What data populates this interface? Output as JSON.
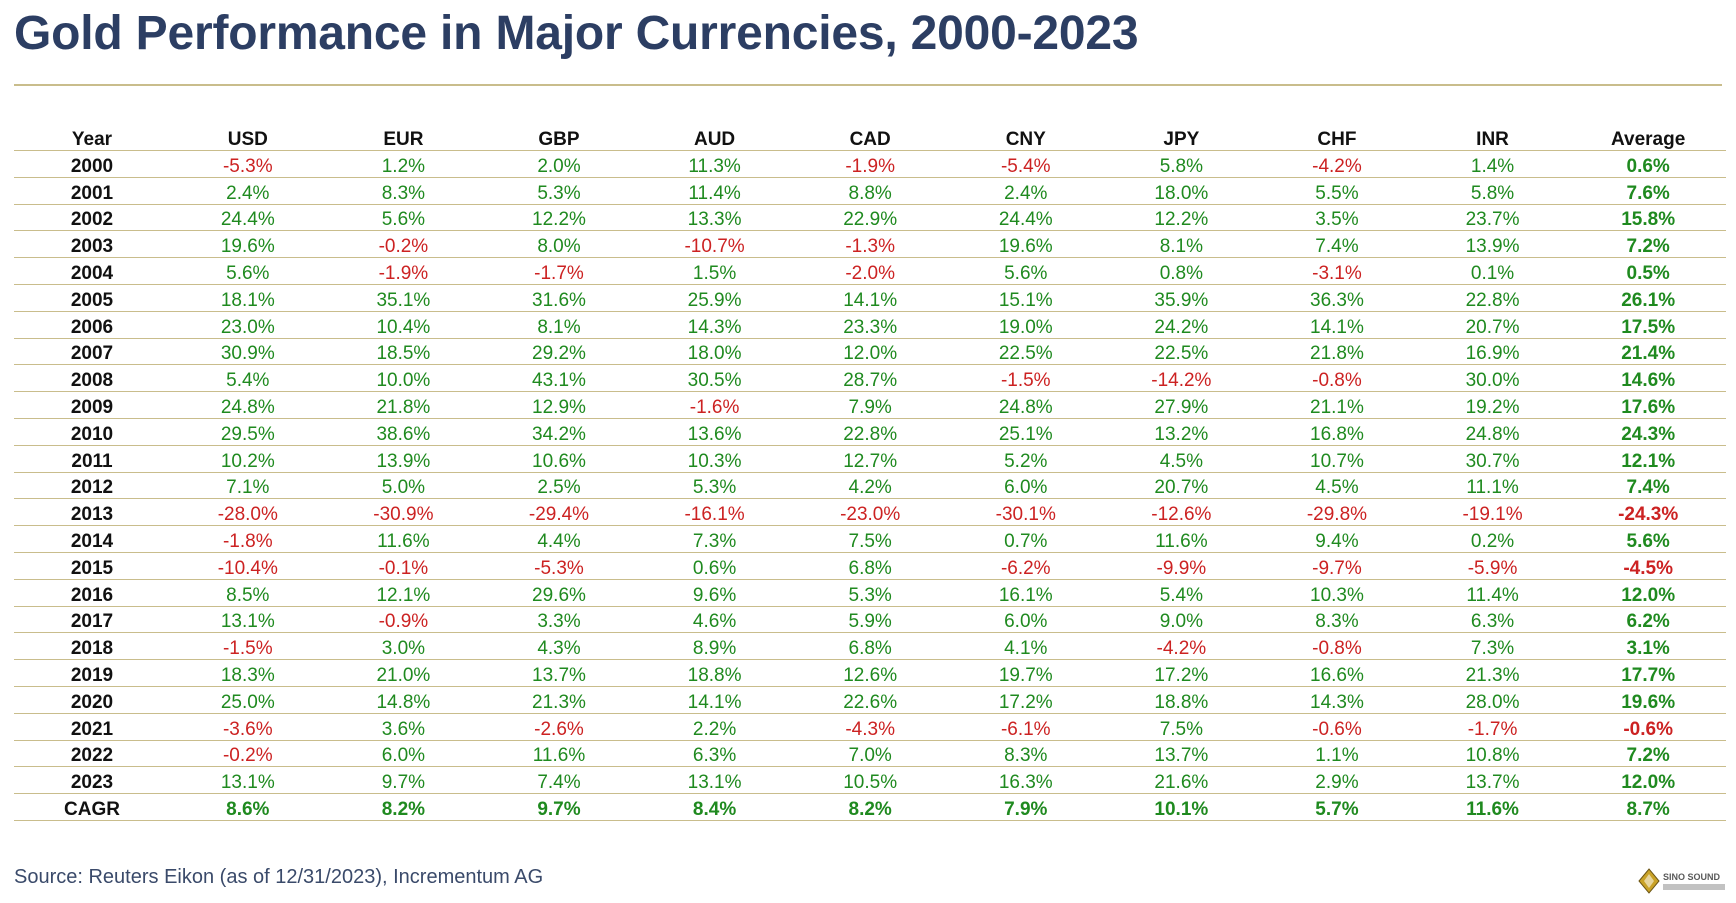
{
  "title": "Gold Performance in Major Currencies, 2000-2023",
  "source": "Source: Reuters Eikon (as of 12/31/2023), Incrementum AG",
  "logo_text": "SINO SOUND",
  "colors": {
    "title": "#2c3e63",
    "positive": "#1f8a1f",
    "negative": "#cc2222",
    "rule": "#c9bd8c"
  },
  "chart_data": {
    "type": "table",
    "title": "Gold Performance in Major Currencies, 2000-2023",
    "columns": [
      "Year",
      "USD",
      "EUR",
      "GBP",
      "AUD",
      "CAD",
      "CNY",
      "JPY",
      "CHF",
      "INR",
      "Average"
    ],
    "rows": [
      [
        "2000",
        "-5.3%",
        "1.2%",
        "2.0%",
        "11.3%",
        "-1.9%",
        "-5.4%",
        "5.8%",
        "-4.2%",
        "1.4%",
        "0.6%"
      ],
      [
        "2001",
        "2.4%",
        "8.3%",
        "5.3%",
        "11.4%",
        "8.8%",
        "2.4%",
        "18.0%",
        "5.5%",
        "5.8%",
        "7.6%"
      ],
      [
        "2002",
        "24.4%",
        "5.6%",
        "12.2%",
        "13.3%",
        "22.9%",
        "24.4%",
        "12.2%",
        "3.5%",
        "23.7%",
        "15.8%"
      ],
      [
        "2003",
        "19.6%",
        "-0.2%",
        "8.0%",
        "-10.7%",
        "-1.3%",
        "19.6%",
        "8.1%",
        "7.4%",
        "13.9%",
        "7.2%"
      ],
      [
        "2004",
        "5.6%",
        "-1.9%",
        "-1.7%",
        "1.5%",
        "-2.0%",
        "5.6%",
        "0.8%",
        "-3.1%",
        "0.1%",
        "0.5%"
      ],
      [
        "2005",
        "18.1%",
        "35.1%",
        "31.6%",
        "25.9%",
        "14.1%",
        "15.1%",
        "35.9%",
        "36.3%",
        "22.8%",
        "26.1%"
      ],
      [
        "2006",
        "23.0%",
        "10.4%",
        "8.1%",
        "14.3%",
        "23.3%",
        "19.0%",
        "24.2%",
        "14.1%",
        "20.7%",
        "17.5%"
      ],
      [
        "2007",
        "30.9%",
        "18.5%",
        "29.2%",
        "18.0%",
        "12.0%",
        "22.5%",
        "22.5%",
        "21.8%",
        "16.9%",
        "21.4%"
      ],
      [
        "2008",
        "5.4%",
        "10.0%",
        "43.1%",
        "30.5%",
        "28.7%",
        "-1.5%",
        "-14.2%",
        "-0.8%",
        "30.0%",
        "14.6%"
      ],
      [
        "2009",
        "24.8%",
        "21.8%",
        "12.9%",
        "-1.6%",
        "7.9%",
        "24.8%",
        "27.9%",
        "21.1%",
        "19.2%",
        "17.6%"
      ],
      [
        "2010",
        "29.5%",
        "38.6%",
        "34.2%",
        "13.6%",
        "22.8%",
        "25.1%",
        "13.2%",
        "16.8%",
        "24.8%",
        "24.3%"
      ],
      [
        "2011",
        "10.2%",
        "13.9%",
        "10.6%",
        "10.3%",
        "12.7%",
        "5.2%",
        "4.5%",
        "10.7%",
        "30.7%",
        "12.1%"
      ],
      [
        "2012",
        "7.1%",
        "5.0%",
        "2.5%",
        "5.3%",
        "4.2%",
        "6.0%",
        "20.7%",
        "4.5%",
        "11.1%",
        "7.4%"
      ],
      [
        "2013",
        "-28.0%",
        "-30.9%",
        "-29.4%",
        "-16.1%",
        "-23.0%",
        "-30.1%",
        "-12.6%",
        "-29.8%",
        "-19.1%",
        "-24.3%"
      ],
      [
        "2014",
        "-1.8%",
        "11.6%",
        "4.4%",
        "7.3%",
        "7.5%",
        "0.7%",
        "11.6%",
        "9.4%",
        "0.2%",
        "5.6%"
      ],
      [
        "2015",
        "-10.4%",
        "-0.1%",
        "-5.3%",
        "0.6%",
        "6.8%",
        "-6.2%",
        "-9.9%",
        "-9.7%",
        "-5.9%",
        "-4.5%"
      ],
      [
        "2016",
        "8.5%",
        "12.1%",
        "29.6%",
        "9.6%",
        "5.3%",
        "16.1%",
        "5.4%",
        "10.3%",
        "11.4%",
        "12.0%"
      ],
      [
        "2017",
        "13.1%",
        "-0.9%",
        "3.3%",
        "4.6%",
        "5.9%",
        "6.0%",
        "9.0%",
        "8.3%",
        "6.3%",
        "6.2%"
      ],
      [
        "2018",
        "-1.5%",
        "3.0%",
        "4.3%",
        "8.9%",
        "6.8%",
        "4.1%",
        "-4.2%",
        "-0.8%",
        "7.3%",
        "3.1%"
      ],
      [
        "2019",
        "18.3%",
        "21.0%",
        "13.7%",
        "18.8%",
        "12.6%",
        "19.7%",
        "17.2%",
        "16.6%",
        "21.3%",
        "17.7%"
      ],
      [
        "2020",
        "25.0%",
        "14.8%",
        "21.3%",
        "14.1%",
        "22.6%",
        "17.2%",
        "18.8%",
        "14.3%",
        "28.0%",
        "19.6%"
      ],
      [
        "2021",
        "-3.6%",
        "3.6%",
        "-2.6%",
        "2.2%",
        "-4.3%",
        "-6.1%",
        "7.5%",
        "-0.6%",
        "-1.7%",
        "-0.6%"
      ],
      [
        "2022",
        "-0.2%",
        "6.0%",
        "11.6%",
        "6.3%",
        "7.0%",
        "8.3%",
        "13.7%",
        "1.1%",
        "10.8%",
        "7.2%"
      ],
      [
        "2023",
        "13.1%",
        "9.7%",
        "7.4%",
        "13.1%",
        "10.5%",
        "16.3%",
        "21.6%",
        "2.9%",
        "13.7%",
        "12.0%"
      ]
    ],
    "cagr_row": [
      "CAGR",
      "8.6%",
      "8.2%",
      "9.7%",
      "8.4%",
      "8.2%",
      "7.9%",
      "10.1%",
      "5.7%",
      "11.6%",
      "8.7%"
    ]
  }
}
